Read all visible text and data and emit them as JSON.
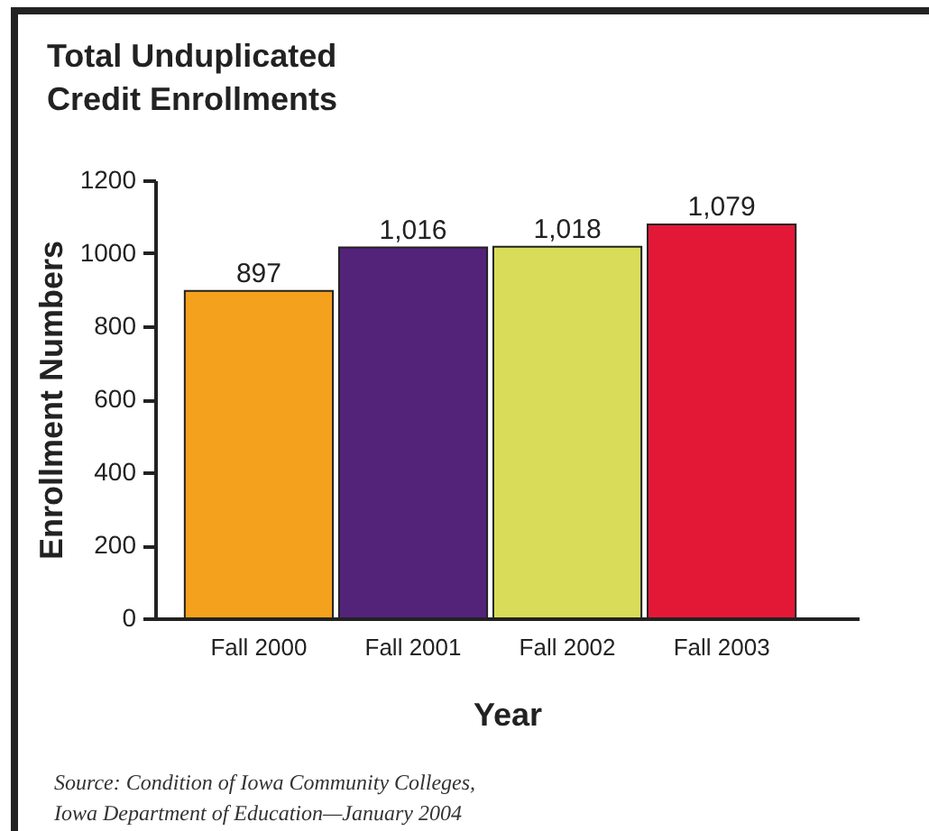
{
  "chart_data": {
    "type": "bar",
    "title": "Total Unduplicated\nCredit Enrollments",
    "xlabel": "Year",
    "ylabel": "Enrollment Numbers",
    "categories": [
      "Fall 2000",
      "Fall 2001",
      "Fall 2002",
      "Fall 2003"
    ],
    "values": [
      897,
      1016,
      1018,
      1079
    ],
    "colors": [
      "#f4a11d",
      "#53237a",
      "#d9dc58",
      "#e31837"
    ],
    "value_labels": [
      "897",
      "1,016",
      "1,018",
      "1,079"
    ],
    "ylim": [
      0,
      1200
    ],
    "yticks": [
      0,
      200,
      400,
      600,
      800,
      1000,
      1200
    ],
    "grid": false,
    "annotations": [
      "Source: Condition of Iowa Community Colleges,",
      "Iowa Department of Education—January 2004"
    ]
  }
}
